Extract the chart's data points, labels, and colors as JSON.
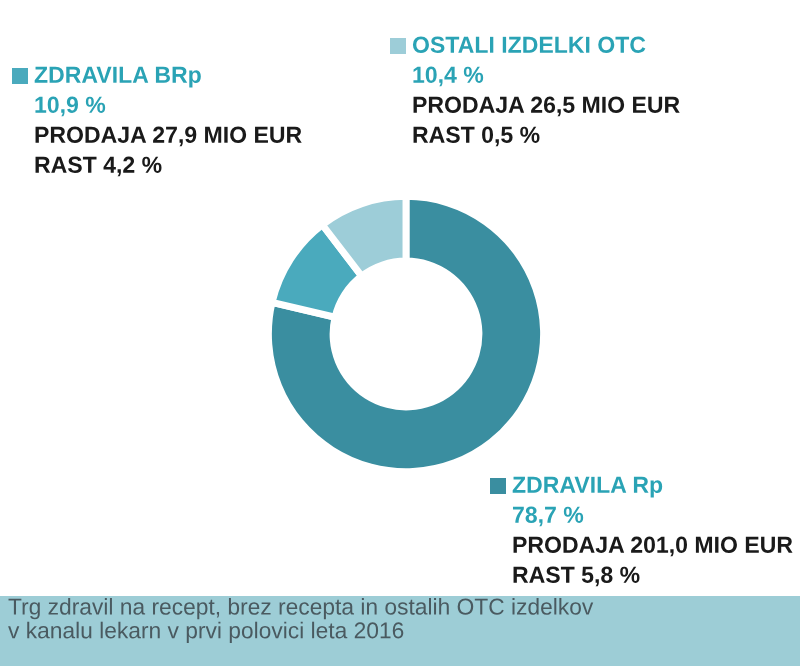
{
  "chart_data": {
    "type": "donut",
    "categories": [
      "ZDRAVILA Rp",
      "ZDRAVILA BRp",
      "OSTALI IZDELKI OTC"
    ],
    "values": [
      78.7,
      10.9,
      10.4
    ],
    "value_labels": [
      "78,7 %",
      "10,9 %",
      "10,4 %"
    ],
    "colors": [
      "#3a8ea0",
      "#4aaabd",
      "#9dcdd8"
    ],
    "annotations": [
      "PRODAJA 201,0 MIO EUR",
      "RAST 5,8 %",
      "PRODAJA 27,9 MIO EUR",
      "RAST 4,2 %",
      "PRODAJA 26,5 MIO EUR",
      "RAST 0,5 %",
      "Trg zdravil na recept, brez recepta in ostalih OTC izdelkov\nv kanalu lekarn v prvi polovici leta 2016"
    ],
    "legend": "top"
  }
}
